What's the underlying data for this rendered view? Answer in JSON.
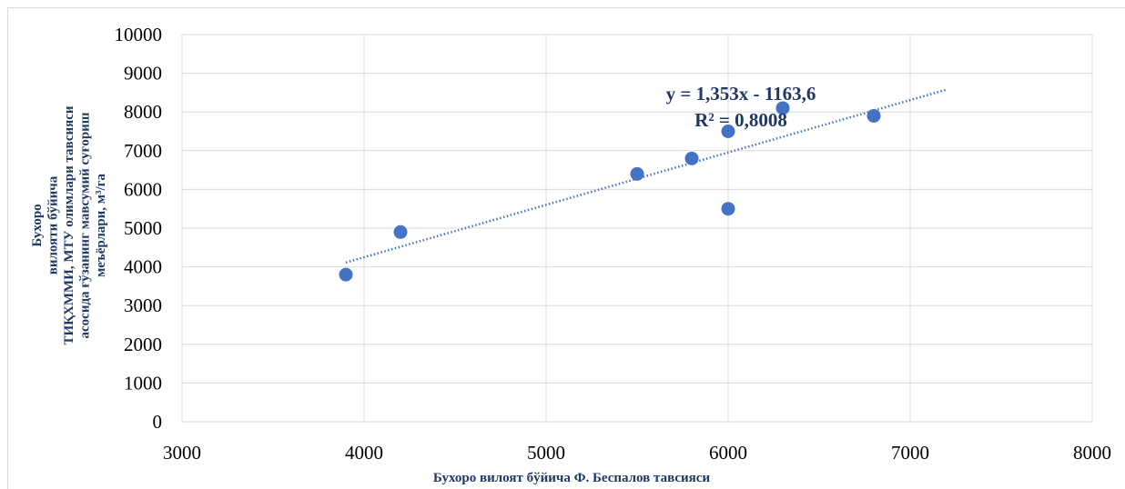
{
  "chart_data": {
    "type": "scatter",
    "x": [
      3900,
      4200,
      5500,
      5800,
      6000,
      6000,
      6300,
      6800
    ],
    "y": [
      3800,
      4900,
      6400,
      6800,
      7500,
      5500,
      8100,
      7900
    ],
    "xlim": [
      3000,
      8000
    ],
    "ylim": [
      0,
      10000
    ],
    "x_ticks": [
      "3000",
      "4000",
      "5000",
      "6000",
      "7000",
      "8000"
    ],
    "y_ticks": [
      "0",
      "1000",
      "2000",
      "3000",
      "4000",
      "5000",
      "6000",
      "7000",
      "8000",
      "9000",
      "10000"
    ],
    "xlabel": "Бухоро  вилоят бўйича Ф. Беспалов тавсияси",
    "ylabel_lines": [
      "Бухоро",
      "вилояти бўйича",
      "ТИҚХММИ, МТУ олимлари тавсияси",
      "асосида  ғўзанинг мавсумий суғориш",
      "меъёрлари, м³/га"
    ],
    "trendline": {
      "type": "linear",
      "slope": 1.353,
      "intercept": -1163.6,
      "x_range": [
        3900,
        7200
      ],
      "equation": "y = 1,353x - 1163,6",
      "r_squared": "R² = 0,8008"
    },
    "grid": true,
    "legend": "none",
    "marker_color": "#4472c4",
    "trend_color": "#4472c4",
    "label_color": "#1f3864"
  }
}
